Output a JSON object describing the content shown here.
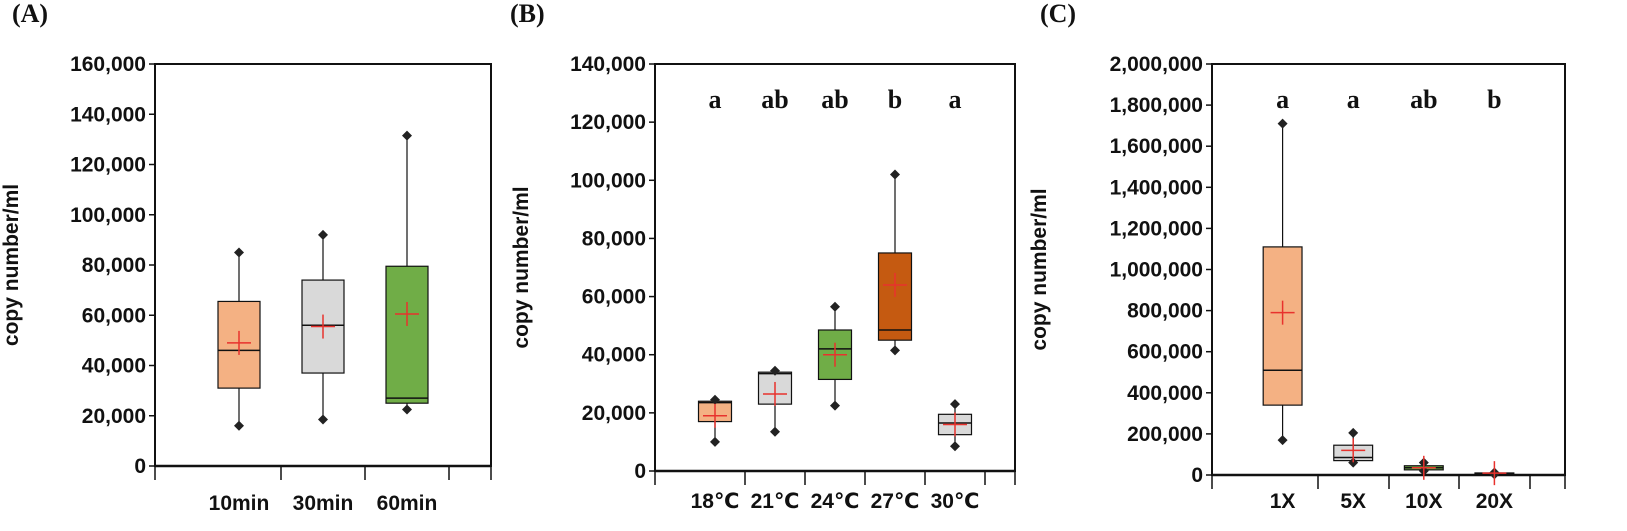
{
  "chart_data": [
    {
      "type": "box",
      "panel_label": "(A)",
      "ylabel": "copy number/ml",
      "ylim": [
        0,
        160000
      ],
      "yticks": [
        0,
        20000,
        40000,
        60000,
        80000,
        100000,
        120000,
        140000,
        160000
      ],
      "ytick_labels": [
        "0",
        "20,000",
        "40,000",
        "60,000",
        "80,000",
        "100,000",
        "120,000",
        "140,000",
        "160,000"
      ],
      "categories": [
        "10min",
        "30min",
        "60min"
      ],
      "boxes": [
        {
          "min": 16000,
          "q1": 31000,
          "median": 46000,
          "q3": 65500,
          "max": 85000,
          "mean": 49000,
          "color": "#F4B183"
        },
        {
          "min": 18500,
          "q1": 37000,
          "median": 56000,
          "q3": 74000,
          "max": 92000,
          "mean": 55500,
          "color": "#D9D9D9"
        },
        {
          "min": 22500,
          "q1": 25000,
          "median": 27000,
          "q3": 79500,
          "max": 131500,
          "mean": 60500,
          "color": "#70AD47"
        }
      ],
      "significance": []
    },
    {
      "type": "box",
      "panel_label": "(B)",
      "ylabel": "copy number/ml",
      "ylim": [
        0,
        140000
      ],
      "yticks": [
        0,
        20000,
        40000,
        60000,
        80000,
        100000,
        120000,
        140000
      ],
      "ytick_labels": [
        "0",
        "20,000",
        "40,000",
        "60,000",
        "80,000",
        "100,000",
        "120,000",
        "140,000"
      ],
      "categories": [
        "18℃",
        "21℃",
        "24℃",
        "27℃",
        "30℃"
      ],
      "boxes": [
        {
          "min": 10000,
          "q1": 17000,
          "median": 23500,
          "q3": 24000,
          "max": 24500,
          "mean": 19000,
          "color": "#F4B183"
        },
        {
          "min": 13500,
          "q1": 23000,
          "median": 33500,
          "q3": 34000,
          "max": 34500,
          "mean": 26500,
          "color": "#D9D9D9"
        },
        {
          "min": 22500,
          "q1": 31500,
          "median": 42000,
          "q3": 48500,
          "max": 56500,
          "mean": 40000,
          "color": "#70AD47"
        },
        {
          "min": 41500,
          "q1": 45000,
          "median": 48500,
          "q3": 75000,
          "max": 102000,
          "mean": 64000,
          "color": "#C55A11"
        },
        {
          "min": 8500,
          "q1": 12500,
          "median": 16500,
          "q3": 19500,
          "max": 23000,
          "mean": 16000,
          "color": "#D9D9D9"
        }
      ],
      "significance": [
        "a",
        "ab",
        "ab",
        "b",
        "a"
      ]
    },
    {
      "type": "box",
      "panel_label": "(C)",
      "ylabel": "copy number/ml",
      "ylim": [
        0,
        2000000
      ],
      "yticks": [
        0,
        200000,
        400000,
        600000,
        800000,
        1000000,
        1200000,
        1400000,
        1600000,
        1800000,
        2000000
      ],
      "ytick_labels": [
        "0",
        "200,000",
        "400,000",
        "600,000",
        "800,000",
        "1,000,000",
        "1,200,000",
        "1,400,000",
        "1,600,000",
        "1,800,000",
        "2,000,000"
      ],
      "categories": [
        "1X",
        "5X",
        "10X",
        "20X"
      ],
      "boxes": [
        {
          "min": 170000,
          "q1": 340000,
          "median": 510000,
          "q3": 1110000,
          "max": 1710000,
          "mean": 790000,
          "color": "#F4B183"
        },
        {
          "min": 60000,
          "q1": 70000,
          "median": 85000,
          "q3": 145000,
          "max": 205000,
          "mean": 120000,
          "color": "#D9D9D9"
        },
        {
          "min": 20000,
          "q1": 25000,
          "median": 35000,
          "q3": 45000,
          "max": 60000,
          "mean": 35000,
          "color": "#70AD47"
        },
        {
          "min": 3000,
          "q1": 5000,
          "median": 8000,
          "q3": 10000,
          "max": 12000,
          "mean": 9000,
          "color": "#C55A11"
        }
      ],
      "significance": [
        "a",
        "a",
        "ab",
        "b"
      ]
    }
  ]
}
